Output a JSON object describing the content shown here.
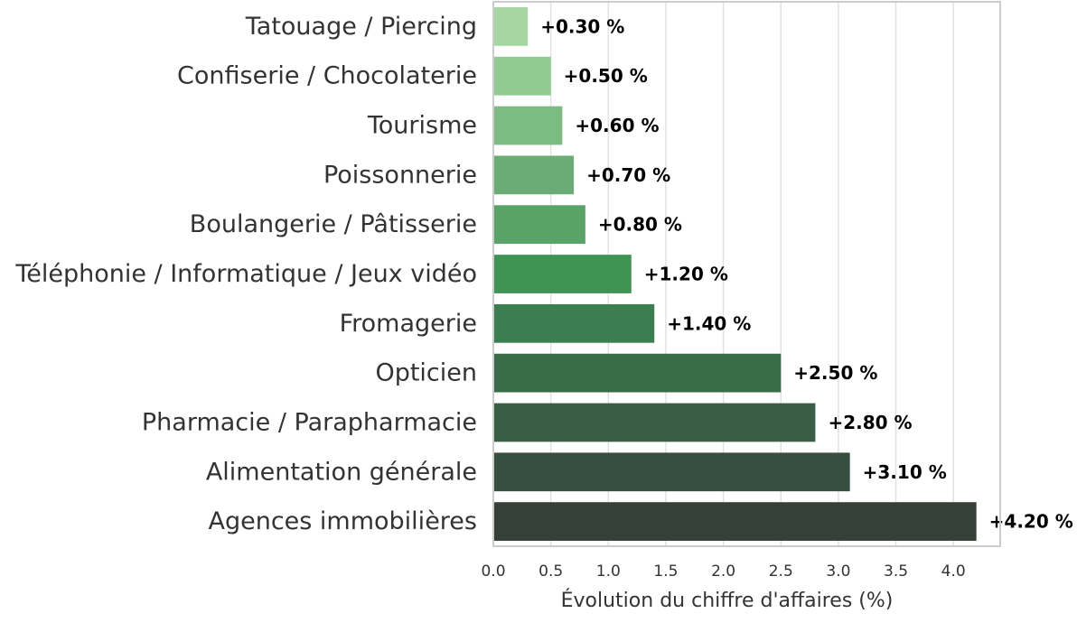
{
  "chart_data": {
    "type": "bar",
    "orientation": "horizontal",
    "categories": [
      "Tatouage / Piercing",
      "Confiserie / Chocolaterie",
      "Tourisme",
      "Poissonnerie",
      "Boulangerie / Pâtisserie",
      "Téléphonie / Informatique / Jeux vidéo",
      "Fromagerie",
      "Opticien",
      "Pharmacie / Parapharmacie",
      "Alimentation générale",
      "Agences immobilières"
    ],
    "values": [
      0.3,
      0.5,
      0.6,
      0.7,
      0.8,
      1.2,
      1.4,
      2.5,
      2.8,
      3.1,
      4.2
    ],
    "value_labels": [
      "+0.30 %",
      "+0.50 %",
      "+0.60 %",
      "+0.70 %",
      "+0.80 %",
      "+1.20 %",
      "+1.40 %",
      "+2.50 %",
      "+2.80 %",
      "+3.10 %",
      "+4.20 %"
    ],
    "bar_colors": [
      "#a6d7a3",
      "#92cb91",
      "#7cbb81",
      "#6bab74",
      "#59a367",
      "#3f9454",
      "#3b7f51",
      "#3b6c49",
      "#385f44",
      "#374f3f",
      "#354038"
    ],
    "xlabel": "Évolution du chiffre d'affaires (%)",
    "ylabel": "",
    "xlim": [
      0,
      4.2
    ],
    "xticks": [
      0.0,
      0.5,
      1.0,
      1.5,
      2.0,
      2.5,
      3.0,
      3.5,
      4.0
    ],
    "xtick_labels": [
      "0.0",
      "0.5",
      "1.0",
      "1.5",
      "2.0",
      "2.5",
      "3.0",
      "3.5",
      "4.0"
    ],
    "grid": "vertical",
    "legend": "none"
  }
}
